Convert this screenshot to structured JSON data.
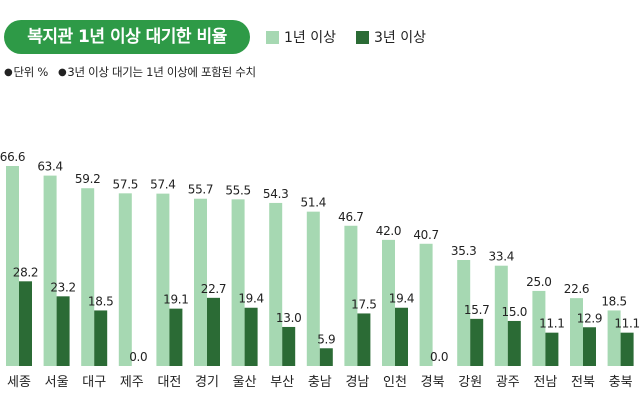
{
  "title": "복지관 1년 이상 대기한 비율",
  "legend": {
    "series1": "1년 이상",
    "series2": "3년 이상"
  },
  "note": {
    "unit_label": "단위 %",
    "footnote": "3년 이상 대기는 1년 이상에 포함된 수치",
    "bullet": "●"
  },
  "colors": {
    "title_bg": "#2e9a47",
    "series1": "#a6d8b2",
    "series2": "#2b6b35"
  },
  "chart_data": {
    "type": "bar",
    "title": "복지관 1년 이상 대기한 비율",
    "xlabel": "",
    "ylabel": "%",
    "ylim": [
      0,
      70
    ],
    "grid": false,
    "categories": [
      "세종",
      "서울",
      "대구",
      "제주",
      "대전",
      "경기",
      "울산",
      "부산",
      "충남",
      "경남",
      "인천",
      "경북",
      "강원",
      "광주",
      "전남",
      "전북",
      "충북"
    ],
    "series": [
      {
        "name": "1년 이상",
        "values": [
          66.6,
          63.4,
          59.2,
          57.5,
          57.4,
          55.7,
          55.5,
          54.3,
          51.4,
          46.7,
          42.0,
          40.7,
          35.3,
          33.4,
          25.0,
          22.6,
          18.5
        ]
      },
      {
        "name": "3년 이상",
        "values": [
          28.2,
          23.2,
          18.5,
          0.0,
          19.1,
          22.7,
          19.4,
          13.0,
          5.9,
          17.5,
          19.4,
          0.0,
          15.7,
          15.0,
          11.1,
          12.9,
          11.1
        ]
      }
    ]
  }
}
